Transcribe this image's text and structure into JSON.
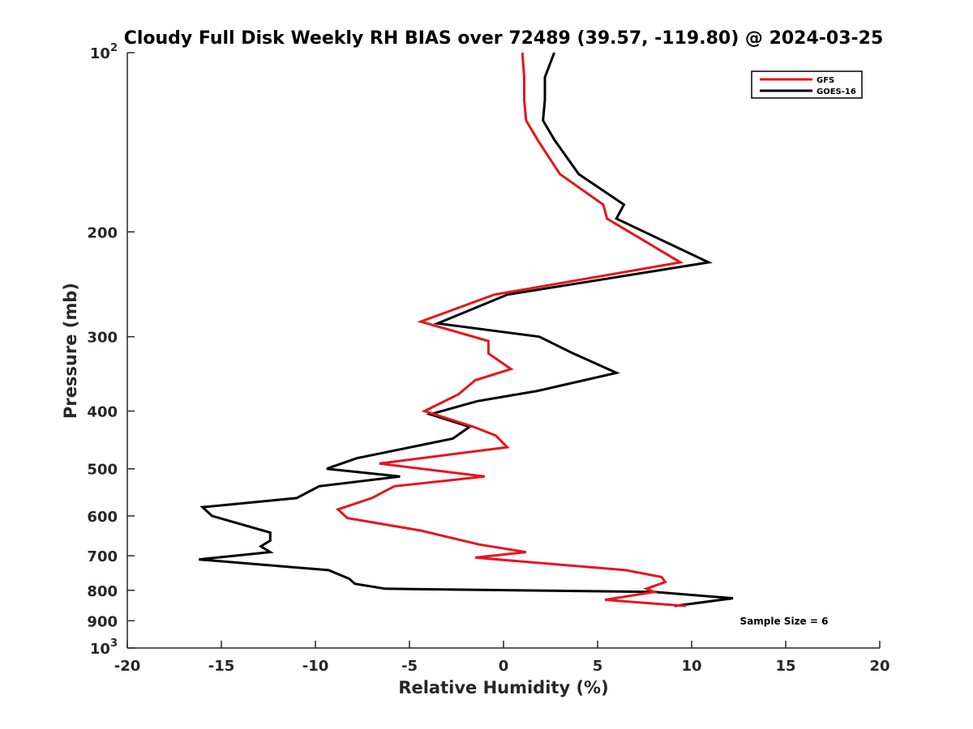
{
  "chart_data": {
    "type": "line",
    "title": "Cloudy Full Disk Weekly RH BIAS over 72489 (39.57, -119.80) @ 2024-03-25",
    "xlabel": "Relative Humidity (%)",
    "ylabel": "Pressure (mb)",
    "xlim": [
      -20,
      20
    ],
    "ylim": [
      100,
      1000
    ],
    "yscale": "log",
    "y_reversed": true,
    "grid": false,
    "legend_position": "top-right",
    "x_ticks": [
      "-20",
      "-15",
      "-10",
      "-5",
      "0",
      "5",
      "10",
      "15",
      "20"
    ],
    "x_tick_values": [
      -20,
      -15,
      -10,
      -5,
      0,
      5,
      10,
      15,
      20
    ],
    "y_ticks": [
      {
        "value": 100,
        "base": "10",
        "exp": "2"
      },
      {
        "value": 200,
        "label": "200"
      },
      {
        "value": 300,
        "label": "300"
      },
      {
        "value": 400,
        "label": "400"
      },
      {
        "value": 500,
        "label": "500"
      },
      {
        "value": 600,
        "label": "600"
      },
      {
        "value": 700,
        "label": "700"
      },
      {
        "value": 800,
        "label": "800"
      },
      {
        "value": 900,
        "label": "900"
      },
      {
        "value": 1000,
        "base": "10",
        "exp": "3"
      }
    ],
    "annotation": "Sample Size = 6",
    "series": [
      {
        "name": "GFS",
        "color": "#e8141b",
        "x": [
          1.0,
          1.1,
          1.1,
          1.2,
          1.8,
          3.0,
          5.3,
          5.5,
          9.4,
          -0.5,
          -4.4,
          -0.8,
          -0.8,
          0.4,
          -1.5,
          -2.4,
          -4.2,
          -1.6,
          -0.4,
          0.2,
          -6.6,
          -1.0,
          -5.8,
          -7.0,
          -8.8,
          -8.3,
          -4.4,
          -1.3,
          1.2,
          -1.5,
          6.5,
          8.4,
          8.6,
          8.1,
          7.6,
          8.0,
          5.4,
          9.7
        ],
        "y": [
          100,
          110,
          120,
          130,
          140,
          160,
          180,
          190,
          225,
          255,
          283,
          305,
          320,
          340,
          355,
          375,
          400,
          425,
          440,
          460,
          490,
          515,
          535,
          560,
          585,
          605,
          635,
          670,
          690,
          705,
          740,
          760,
          775,
          785,
          795,
          805,
          830,
          850
        ]
      },
      {
        "name": "GOES-16",
        "color": "#000000",
        "x": [
          2.7,
          2.2,
          2.2,
          2.1,
          2.7,
          4.0,
          6.4,
          6.0,
          10.9,
          0.2,
          -3.5,
          1.9,
          3.7,
          6.0,
          1.8,
          -1.4,
          -3.9,
          -1.8,
          -2.7,
          -7.8,
          -9.4,
          -5.5,
          -9.8,
          -11.0,
          -16.0,
          -15.5,
          -12.4,
          -12.4,
          -12.9,
          -12.4,
          -16.2,
          -9.3,
          -8.2,
          -7.9,
          -6.3,
          8.0,
          12.2,
          9.1
        ],
        "y": [
          100,
          110,
          120,
          130,
          140,
          160,
          180,
          190,
          225,
          255,
          285,
          300,
          320,
          345,
          370,
          385,
          405,
          425,
          445,
          480,
          500,
          515,
          535,
          560,
          580,
          600,
          640,
          660,
          675,
          690,
          710,
          740,
          765,
          780,
          795,
          805,
          825,
          850
        ]
      }
    ]
  }
}
